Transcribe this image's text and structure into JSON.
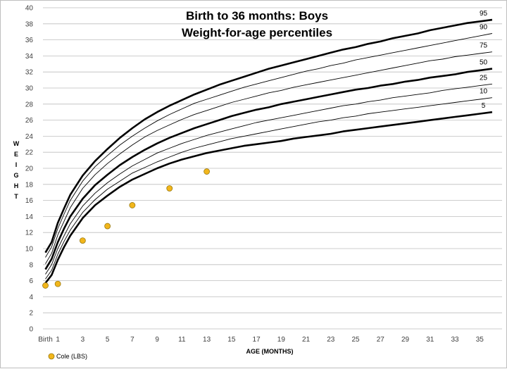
{
  "chart_data": {
    "type": "line",
    "title_line1": "Birth to 36 months: Boys",
    "title_line2": "Weight-for-age percentiles",
    "xlabel": "AGE (MONTHS)",
    "ylabel": "WEIGHT",
    "ylim": [
      0,
      40
    ],
    "y_ticks": [
      0,
      2,
      4,
      6,
      8,
      10,
      12,
      14,
      16,
      18,
      20,
      22,
      24,
      26,
      28,
      30,
      32,
      34,
      36,
      38,
      40
    ],
    "x_tick_labels": [
      "Birth",
      "1",
      "3",
      "5",
      "7",
      "9",
      "11",
      "13",
      "15",
      "17",
      "19",
      "21",
      "23",
      "25",
      "27",
      "29",
      "31",
      "33",
      "35"
    ],
    "x_tick_values": [
      0,
      1,
      3,
      5,
      7,
      9,
      11,
      13,
      15,
      17,
      19,
      21,
      23,
      25,
      27,
      29,
      31,
      33,
      35
    ],
    "xlim": [
      -0.2,
      36.8
    ],
    "grid": "horizontal",
    "legend_position": "bottom-left",
    "x": [
      0,
      0.5,
      1,
      1.5,
      2,
      3,
      4,
      5,
      6,
      7,
      8,
      9,
      10,
      11,
      12,
      13,
      14,
      15,
      16,
      17,
      18,
      19,
      20,
      21,
      22,
      23,
      24,
      25,
      26,
      27,
      28,
      29,
      30,
      31,
      32,
      33,
      34,
      35,
      36
    ],
    "series": [
      {
        "name": "95",
        "bold": true,
        "values": [
          9.5,
          10.8,
          13.2,
          15.0,
          16.7,
          19.1,
          20.9,
          22.4,
          23.8,
          25.0,
          26.1,
          27.0,
          27.8,
          28.5,
          29.2,
          29.8,
          30.4,
          30.9,
          31.4,
          31.9,
          32.4,
          32.8,
          33.2,
          33.6,
          34.0,
          34.4,
          34.8,
          35.1,
          35.5,
          35.8,
          36.2,
          36.5,
          36.8,
          37.2,
          37.5,
          37.8,
          38.1,
          38.3,
          38.5
        ]
      },
      {
        "name": "90",
        "bold": false,
        "values": [
          8.9,
          10.2,
          12.5,
          14.3,
          16.0,
          18.4,
          20.2,
          21.6,
          22.9,
          24.0,
          25.0,
          25.9,
          26.7,
          27.4,
          28.1,
          28.6,
          29.1,
          29.6,
          30.1,
          30.5,
          30.9,
          31.3,
          31.7,
          32.1,
          32.4,
          32.8,
          33.1,
          33.5,
          33.8,
          34.1,
          34.4,
          34.7,
          35.0,
          35.3,
          35.6,
          35.9,
          36.2,
          36.5,
          36.8
        ]
      },
      {
        "name": "75",
        "bold": false,
        "values": [
          8.1,
          9.4,
          11.7,
          13.4,
          15.1,
          17.5,
          19.2,
          20.6,
          21.8,
          22.9,
          23.9,
          24.7,
          25.4,
          26.1,
          26.7,
          27.2,
          27.7,
          28.2,
          28.6,
          29.0,
          29.4,
          29.7,
          30.1,
          30.4,
          30.7,
          31.0,
          31.3,
          31.6,
          31.9,
          32.2,
          32.5,
          32.8,
          33.1,
          33.4,
          33.6,
          33.9,
          34.1,
          34.3,
          34.5
        ]
      },
      {
        "name": "50",
        "bold": true,
        "values": [
          7.4,
          8.7,
          10.8,
          12.5,
          14.0,
          16.2,
          17.9,
          19.2,
          20.4,
          21.4,
          22.3,
          23.1,
          23.8,
          24.4,
          25.0,
          25.5,
          26.0,
          26.5,
          26.9,
          27.3,
          27.6,
          28.0,
          28.3,
          28.6,
          28.9,
          29.2,
          29.5,
          29.8,
          30.0,
          30.3,
          30.5,
          30.8,
          31.0,
          31.3,
          31.5,
          31.7,
          32.0,
          32.2,
          32.4
        ]
      },
      {
        "name": "25",
        "bold": false,
        "values": [
          6.8,
          8.0,
          10.0,
          11.6,
          13.1,
          15.3,
          16.9,
          18.2,
          19.3,
          20.3,
          21.1,
          21.9,
          22.5,
          23.1,
          23.6,
          24.1,
          24.5,
          24.9,
          25.3,
          25.7,
          26.0,
          26.3,
          26.6,
          26.9,
          27.2,
          27.5,
          27.8,
          28.0,
          28.3,
          28.5,
          28.8,
          29.0,
          29.2,
          29.4,
          29.7,
          29.9,
          30.1,
          30.3,
          30.5
        ]
      },
      {
        "name": "10",
        "bold": false,
        "values": [
          6.2,
          7.3,
          9.3,
          10.9,
          12.3,
          14.5,
          16.1,
          17.4,
          18.4,
          19.4,
          20.1,
          20.8,
          21.4,
          22.0,
          22.5,
          22.9,
          23.3,
          23.7,
          24.0,
          24.3,
          24.6,
          24.9,
          25.2,
          25.5,
          25.8,
          26.0,
          26.3,
          26.5,
          26.8,
          27.0,
          27.2,
          27.4,
          27.6,
          27.8,
          28.0,
          28.2,
          28.4,
          28.6,
          28.8
        ]
      },
      {
        "name": "5",
        "bold": true,
        "values": [
          5.7,
          6.7,
          8.6,
          10.2,
          11.6,
          13.8,
          15.4,
          16.6,
          17.7,
          18.6,
          19.3,
          20.0,
          20.6,
          21.1,
          21.5,
          21.9,
          22.2,
          22.5,
          22.8,
          23.0,
          23.2,
          23.4,
          23.7,
          23.9,
          24.1,
          24.3,
          24.6,
          24.8,
          25.0,
          25.2,
          25.4,
          25.6,
          25.8,
          26.0,
          26.2,
          26.4,
          26.6,
          26.8,
          27.0
        ]
      }
    ],
    "points": {
      "name": "Cole (LBS)",
      "color": "#f2b61b",
      "edge_color": "#9a7a10",
      "x": [
        0,
        1,
        3,
        5,
        7,
        10,
        13
      ],
      "y": [
        5.4,
        5.6,
        11.0,
        12.8,
        15.4,
        17.5,
        19.6
      ]
    }
  }
}
